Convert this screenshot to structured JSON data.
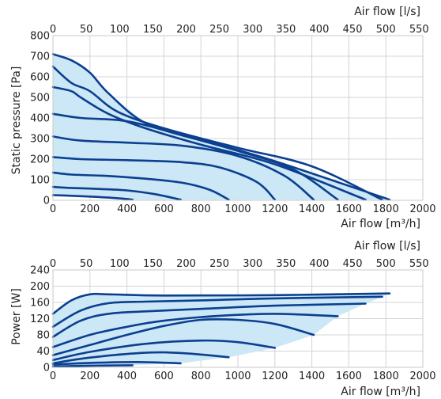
{
  "chart_data": [
    {
      "id": "pressure",
      "type": "line",
      "ylabel": "Static pressure [Pa]",
      "xlabel_bottom": "Air flow [m³/h]",
      "xlabel_top": "Air flow [l/s]",
      "xlim": [
        0,
        2000
      ],
      "ylim": [
        0,
        800
      ],
      "x_ticks": [
        0,
        200,
        400,
        600,
        800,
        1000,
        1200,
        1400,
        1600,
        1800,
        2000
      ],
      "x2_ticks": [
        0,
        50,
        100,
        150,
        200,
        250,
        300,
        350,
        400,
        450,
        500,
        550
      ],
      "y_ticks": [
        0,
        100,
        200,
        300,
        400,
        500,
        600,
        700,
        800
      ],
      "grid": true,
      "shaded_region": true,
      "series": [
        {
          "x": [
            0,
            100,
            200,
            300,
            380,
            430
          ],
          "y": [
            25,
            22,
            18,
            13,
            8,
            3
          ]
        },
        {
          "x": [
            0,
            100,
            250,
            400,
            550,
            690
          ],
          "y": [
            65,
            60,
            55,
            48,
            30,
            3
          ]
        },
        {
          "x": [
            0,
            100,
            300,
            500,
            700,
            850,
            950
          ],
          "y": [
            135,
            125,
            118,
            105,
            85,
            50,
            3
          ]
        },
        {
          "x": [
            0,
            150,
            400,
            700,
            900,
            1100,
            1200
          ],
          "y": [
            210,
            200,
            195,
            185,
            160,
            90,
            3
          ]
        },
        {
          "x": [
            0,
            150,
            400,
            700,
            1000,
            1250,
            1410
          ],
          "y": [
            310,
            290,
            280,
            265,
            215,
            120,
            3
          ]
        },
        {
          "x": [
            0,
            150,
            350,
            500,
            700,
            1000,
            1300,
            1540
          ],
          "y": [
            420,
            400,
            390,
            365,
            315,
            240,
            150,
            3
          ]
        },
        {
          "x": [
            0,
            100,
            150,
            300,
            500,
            800,
            1200,
            1690
          ],
          "y": [
            550,
            530,
            500,
            420,
            350,
            270,
            175,
            3
          ]
        },
        {
          "x": [
            0,
            100,
            200,
            350,
            600,
            1000,
            1400,
            1780
          ],
          "y": [
            650,
            570,
            530,
            430,
            350,
            255,
            165,
            3
          ]
        },
        {
          "x": [
            0,
            100,
            200,
            300,
            500,
            800,
            1200,
            1820
          ],
          "y": [
            710,
            680,
            620,
            520,
            375,
            295,
            190,
            3
          ]
        }
      ]
    },
    {
      "id": "power",
      "type": "line",
      "ylabel": "Power [W]",
      "xlabel_bottom": "Air flow [m³/h]",
      "xlabel_top": "Air flow [l/s]",
      "xlim": [
        0,
        2000
      ],
      "ylim": [
        0,
        240
      ],
      "x_ticks": [
        0,
        200,
        400,
        600,
        800,
        1000,
        1200,
        1400,
        1600,
        1800,
        2000
      ],
      "x2_ticks": [
        0,
        50,
        100,
        150,
        200,
        250,
        300,
        350,
        400,
        450,
        500,
        550
      ],
      "y_ticks": [
        0,
        40,
        80,
        120,
        160,
        200,
        240
      ],
      "grid": true,
      "shaded_region": true,
      "series": [
        {
          "x": [
            0,
            200,
            430
          ],
          "y": [
            2,
            4,
            5
          ]
        },
        {
          "x": [
            0,
            200,
            450,
            690
          ],
          "y": [
            7,
            11,
            13,
            10
          ]
        },
        {
          "x": [
            0,
            200,
            500,
            700,
            950
          ],
          "y": [
            10,
            24,
            36,
            35,
            25
          ]
        },
        {
          "x": [
            0,
            200,
            500,
            800,
            1000,
            1200
          ],
          "y": [
            18,
            38,
            58,
            66,
            62,
            48
          ]
        },
        {
          "x": [
            0,
            200,
            400,
            600,
            800,
            1000,
            1200,
            1410
          ],
          "y": [
            30,
            55,
            80,
            102,
            117,
            117,
            107,
            80
          ]
        },
        {
          "x": [
            0,
            200,
            400,
            600,
            900,
            1200,
            1540
          ],
          "y": [
            50,
            80,
            100,
            115,
            127,
            132,
            126
          ]
        },
        {
          "x": [
            0,
            150,
            300,
            500,
            800,
            1200,
            1690
          ],
          "y": [
            75,
            115,
            132,
            138,
            144,
            152,
            157
          ]
        },
        {
          "x": [
            0,
            150,
            300,
            500,
            800,
            1200,
            1780
          ],
          "y": [
            100,
            140,
            158,
            162,
            165,
            170,
            174
          ]
        },
        {
          "x": [
            0,
            100,
            200,
            300,
            600,
            1200,
            1820
          ],
          "y": [
            132,
            165,
            180,
            180,
            177,
            178,
            182
          ]
        }
      ]
    }
  ],
  "colors": {
    "curve": "#0b3f8f",
    "area": "#cce7f6",
    "grid": "#d4d4d4"
  }
}
